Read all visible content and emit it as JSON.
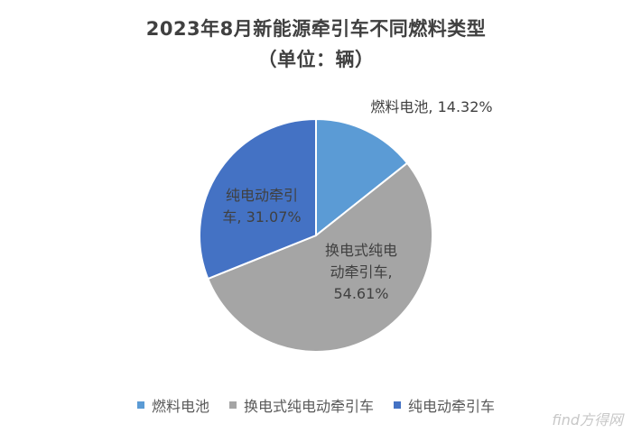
{
  "chart_data": {
    "type": "pie",
    "title": "2023年8月新能源牵引车不同燃料类型",
    "subtitle": "（单位：辆）",
    "slices": [
      {
        "label": "燃料电池",
        "value": 14.32,
        "display": "14.32%",
        "color": "#5B9BD5",
        "data_label": [
          "燃料电池, 14.32%"
        ]
      },
      {
        "label": "换电式纯电动牵引车",
        "value": 54.61,
        "display": "54.61%",
        "color": "#A5A5A5",
        "data_label": [
          "换电式纯电",
          "动牵引车,",
          "54.61%"
        ]
      },
      {
        "label": "纯电动牵引车",
        "value": 31.07,
        "display": "31.07%",
        "color": "#4472C4",
        "data_label": [
          "纯电动牵引",
          "车, 31.07%"
        ]
      }
    ],
    "legend_position": "bottom"
  },
  "watermark": "find方得网"
}
